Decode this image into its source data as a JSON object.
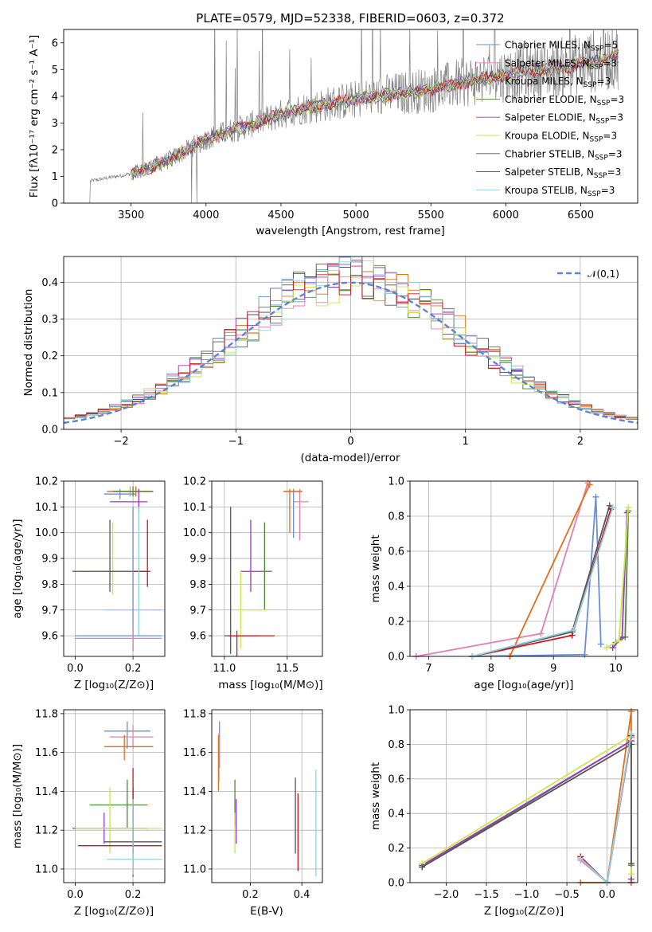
{
  "colors": [
    "#6a8ed8",
    "#e57fb1",
    "#e06f1a",
    "#4f8a3a",
    "#9b38c6",
    "#c8e84b",
    "#555555",
    "#c8161c",
    "#8fd1e0"
  ],
  "chart_data": [
    {
      "type": "line",
      "title": "PLATE=0579, MJD=52338, FIBERID=0603, z=0.372",
      "xlabel": "wavelength [Angstrom, rest frame]",
      "ylabel": "Flux [f$_\\lambda$10$^{-17}$ erg cm$^{-2}$ s$^{-1}$ A$^{-1}$]",
      "ylabel_display": "Flux [fλ10⁻¹⁷ erg cm⁻² s⁻¹ A⁻¹]",
      "xlim": [
        3050,
        6880
      ],
      "ylim": [
        0,
        6.5
      ],
      "xticks": [
        "3500",
        "4000",
        "4500",
        "5000",
        "5500",
        "6000",
        "6500"
      ],
      "yticks": [
        "0",
        "1",
        "2",
        "3",
        "4",
        "5",
        "6"
      ],
      "series": [
        {
          "name": "Chabrier MILES, N$_{SSP}$=5",
          "display": "Chabrier MILES, N",
          "sub": "SSP",
          "suffix": "=5"
        },
        {
          "name": "Salpeter MILES, N$_{SSP}$=3",
          "display": "Salpeter MILES, N",
          "sub": "SSP",
          "suffix": "=3"
        },
        {
          "name": "Kroupa MILES, N$_{SSP}$=3",
          "display": "Kroupa MILES, N",
          "sub": "SSP",
          "suffix": "=3"
        },
        {
          "name": "Chabrier ELODIE, N$_{SSP}$=3",
          "display": "Chabrier ELODIE, N",
          "sub": "SSP",
          "suffix": "=3"
        },
        {
          "name": "Salpeter ELODIE, N$_{SSP}$=3",
          "display": "Salpeter ELODIE, N",
          "sub": "SSP",
          "suffix": "=3"
        },
        {
          "name": "Kroupa ELODIE, N$_{SSP}$=3",
          "display": "Kroupa ELODIE, N",
          "sub": "SSP",
          "suffix": "=3"
        },
        {
          "name": "Chabrier STELIB, N$_{SSP}$=3",
          "display": "Chabrier STELIB, N",
          "sub": "SSP",
          "suffix": "=3"
        },
        {
          "name": "Salpeter STELIB, N$_{SSP}$=3",
          "display": "Salpeter STELIB, N",
          "sub": "SSP",
          "suffix": "=3"
        },
        {
          "name": "Kroupa STELIB, N$_{SSP}$=3",
          "display": "Kroupa STELIB, N",
          "sub": "SSP",
          "suffix": "=3"
        }
      ],
      "data_continuum": {
        "x": [
          3200,
          3500,
          3750,
          4000,
          4300,
          4600,
          4900,
          5200,
          5500,
          5800,
          6100,
          6400,
          6750
        ],
        "y": [
          0.8,
          1.1,
          1.6,
          2.4,
          2.95,
          3.5,
          3.8,
          4.05,
          4.25,
          4.6,
          4.9,
          5.1,
          5.5
        ]
      },
      "grid": false
    },
    {
      "type": "line",
      "xlabel": "(data-model)/error",
      "ylabel": "Normed distribution",
      "xlim": [
        -2.5,
        2.5
      ],
      "ylim": [
        0,
        0.47
      ],
      "xticks": [
        "−2",
        "−1",
        "0",
        "1",
        "2"
      ],
      "yticks": [
        "0.0",
        "0.1",
        "0.2",
        "0.3",
        "0.4"
      ],
      "legend": "$\\mathcal{N}(0,1)$",
      "legend_display": "𝒩(0,1)",
      "legend_position": "top-right",
      "bin_width": 0.1,
      "grid": true
    },
    {
      "type": "scatter",
      "xlabel": "Z [log$_{10}$(Z/Z$_\\odot$)]",
      "xlabel_display": "Z [log₁₀(Z/Z⊙)]",
      "ylabel": "age  [log$_{10}$(age/yr)]",
      "ylabel_display": "age  [log₁₀(age/yr)]",
      "xlim": [
        -0.04,
        0.31
      ],
      "ylim": [
        9.52,
        10.2
      ],
      "xticks": [
        "0.0",
        "0.2"
      ],
      "yticks": [
        "9.6",
        "9.7",
        "9.8",
        "9.9",
        "10.0",
        "10.1",
        "10.2"
      ],
      "points": [
        {
          "x": 0.155,
          "xlo": 0.1,
          "xhi": 0.21,
          "y": 10.15,
          "ylo": 10.13,
          "yhi": 10.17
        },
        {
          "x": 0.19,
          "xlo": 0.12,
          "xhi": 0.26,
          "y": 10.16,
          "ylo": 10.14,
          "yhi": 10.18
        },
        {
          "x": 0.21,
          "xlo": 0.11,
          "xhi": 0.27,
          "y": 10.16,
          "ylo": 10.14,
          "yhi": 10.18
        },
        {
          "x": 0.2,
          "xlo": 0.13,
          "xhi": 0.27,
          "y": 10.16,
          "ylo": 10.14,
          "yhi": 10.18
        },
        {
          "x": 0.22,
          "xlo": 0.12,
          "xhi": 0.25,
          "y": 10.12,
          "ylo": 10.08,
          "yhi": 10.17
        },
        {
          "x": 0.13,
          "xlo": 0.02,
          "xhi": 0.25,
          "y": 9.85,
          "ylo": 9.76,
          "yhi": 10.04
        },
        {
          "x": 0.12,
          "xlo": -0.01,
          "xhi": 0.25,
          "y": 9.85,
          "ylo": 9.77,
          "yhi": 10.05
        },
        {
          "x": 0.25,
          "xlo": 0.2,
          "xhi": 0.26,
          "y": 9.85,
          "ylo": 9.79,
          "yhi": 10.05
        },
        {
          "x": 0.22,
          "xlo": 0.1,
          "xhi": 0.3,
          "y": 9.7,
          "ylo": 9.6,
          "yhi": 10.1
        },
        {
          "x": 0.2,
          "xlo": 0.0,
          "xhi": 0.3,
          "y": 9.6,
          "ylo": 9.54,
          "yhi": 10.1
        },
        {
          "x": 0.2,
          "xlo": 0.0,
          "xhi": 0.3,
          "y": 9.59,
          "ylo": 9.55,
          "yhi": 9.62
        }
      ]
    },
    {
      "type": "scatter",
      "xlabel": "mass [log$_{10}$(M/M$_\\odot$)]",
      "xlabel_display": "mass [log₁₀(M/M⊙)]",
      "xlim": [
        10.9,
        11.78
      ],
      "ylim": [
        9.52,
        10.2
      ],
      "xticks": [
        "11.0",
        "11.5"
      ],
      "yticks": [
        "9.6",
        "9.7",
        "9.8",
        "9.9",
        "10.0",
        "10.1",
        "10.2"
      ],
      "points": [
        {
          "x": 11.55,
          "xlo": 11.48,
          "xhi": 11.62,
          "y": 10.16,
          "ylo": 9.98,
          "yhi": 10.17
        },
        {
          "x": 11.6,
          "xlo": 11.55,
          "xhi": 11.67,
          "y": 10.12,
          "ylo": 9.97,
          "yhi": 10.17
        },
        {
          "x": 11.52,
          "xlo": 11.47,
          "xhi": 11.62,
          "y": 10.16,
          "ylo": 10.0,
          "yhi": 10.17
        },
        {
          "x": 11.32,
          "xlo": 11.3,
          "xhi": 11.38,
          "y": 9.85,
          "ylo": 9.7,
          "yhi": 10.04
        },
        {
          "x": 11.21,
          "xlo": 11.13,
          "xhi": 11.3,
          "y": 9.85,
          "ylo": 9.77,
          "yhi": 10.05
        },
        {
          "x": 11.13,
          "xlo": 11.09,
          "xhi": 11.35,
          "y": 9.7,
          "ylo": 9.55,
          "yhi": 9.85
        },
        {
          "x": 11.05,
          "xlo": 11.0,
          "xhi": 11.28,
          "y": 9.6,
          "ylo": 9.53,
          "yhi": 10.1
        },
        {
          "x": 11.1,
          "xlo": 11.03,
          "xhi": 11.4,
          "y": 9.6,
          "ylo": 9.52,
          "yhi": 9.62
        }
      ]
    },
    {
      "type": "line",
      "xlabel": "age  [log$_{10}$(age/yr)]",
      "xlabel_display": "age  [log₁₀(age/yr)]",
      "ylabel": "mass weight",
      "xlim": [
        6.7,
        10.35
      ],
      "ylim": [
        0,
        1.0
      ],
      "xticks": [
        "7",
        "8",
        "9",
        "10"
      ],
      "yticks": [
        "0.0",
        "0.2",
        "0.4",
        "0.6",
        "0.8",
        "1.0"
      ],
      "grid": true,
      "series": [
        {
          "x": [
            7.7,
            9.5,
            9.68,
            9.76
          ],
          "y": [
            0.0,
            0.01,
            0.91,
            0.07
          ]
        },
        {
          "x": [
            6.8,
            8.8,
            9.55
          ],
          "y": [
            0.0,
            0.13,
            0.99
          ]
        },
        {
          "x": [
            8.3,
            9.58
          ],
          "y": [
            0.0,
            0.98
          ]
        },
        {
          "x": [
            10.0,
            10.15,
            10.2
          ],
          "y": [
            0.08,
            0.11,
            0.83
          ]
        },
        {
          "x": [
            9.95,
            10.1,
            10.18
          ],
          "y": [
            0.05,
            0.11,
            0.82
          ]
        },
        {
          "x": [
            9.85,
            10.05,
            10.2
          ],
          "y": [
            0.05,
            0.09,
            0.85
          ]
        },
        {
          "x": [
            7.7,
            9.3,
            9.9
          ],
          "y": [
            0.0,
            0.14,
            0.86
          ]
        },
        {
          "x": [
            7.7,
            9.3,
            9.92
          ],
          "y": [
            0.0,
            0.12,
            0.84
          ]
        },
        {
          "x": [
            7.7,
            9.32,
            9.95
          ],
          "y": [
            0.0,
            0.15,
            0.85
          ]
        }
      ]
    },
    {
      "type": "scatter",
      "xlabel": "Z [log$_{10}$(Z/Z$_\\odot$)]",
      "xlabel_display": "Z [log₁₀(Z/Z⊙)]",
      "ylabel": "mass [log$_{10}$(M/M$_\\odot$)]",
      "ylabel_display": "mass [log₁₀(M/M⊙)]",
      "xlim": [
        -0.04,
        0.31
      ],
      "ylim": [
        10.93,
        11.82
      ],
      "xticks": [
        "0.0",
        "0.2"
      ],
      "yticks": [
        "11.0",
        "11.2",
        "11.4",
        "11.6",
        "11.8"
      ],
      "points": [
        {
          "x": 0.18,
          "xlo": 0.1,
          "xhi": 0.26,
          "y": 11.71,
          "ylo": 11.62,
          "yhi": 11.76
        },
        {
          "x": 0.2,
          "xlo": 0.12,
          "xhi": 0.27,
          "y": 11.68,
          "ylo": 11.62,
          "yhi": 11.74
        },
        {
          "x": 0.17,
          "xlo": 0.1,
          "xhi": 0.27,
          "y": 11.63,
          "ylo": 11.56,
          "yhi": 11.69
        },
        {
          "x": 0.18,
          "xlo": 0.05,
          "xhi": 0.25,
          "y": 11.33,
          "ylo": 11.21,
          "yhi": 11.46
        },
        {
          "x": 0.1,
          "xlo": -0.01,
          "xhi": 0.25,
          "y": 11.21,
          "ylo": 11.13,
          "yhi": 11.29
        },
        {
          "x": 0.12,
          "xlo": 0.0,
          "xhi": 0.3,
          "y": 11.21,
          "ylo": 11.08,
          "yhi": 11.42
        },
        {
          "x": 0.2,
          "xlo": 0.1,
          "xhi": 0.3,
          "y": 11.14,
          "ylo": 11.08,
          "yhi": 11.42
        },
        {
          "x": 0.2,
          "xlo": 0.01,
          "xhi": 0.3,
          "y": 11.12,
          "ylo": 10.96,
          "yhi": 11.52
        },
        {
          "x": 0.2,
          "xlo": 0.11,
          "xhi": 0.3,
          "y": 11.05,
          "ylo": 10.97,
          "yhi": 11.36
        }
      ]
    },
    {
      "type": "scatter",
      "xlabel": "E(B-V)",
      "xlim": [
        0.05,
        0.48
      ],
      "ylim": [
        10.93,
        11.82
      ],
      "xticks": [
        "0.2",
        "0.4"
      ],
      "yticks": [
        "11.0",
        "11.2",
        "11.4",
        "11.6",
        "11.8"
      ],
      "points": [
        {
          "x": 0.08,
          "ylo": 11.52,
          "yhi": 11.76
        },
        {
          "x": 0.078,
          "ylo": 11.45,
          "yhi": 11.7
        },
        {
          "x": 0.076,
          "ylo": 11.4,
          "yhi": 11.69
        },
        {
          "x": 0.14,
          "ylo": 11.22,
          "yhi": 11.46
        },
        {
          "x": 0.145,
          "ylo": 11.13,
          "yhi": 11.36
        },
        {
          "x": 0.14,
          "ylo": 11.08,
          "yhi": 11.29
        },
        {
          "x": 0.375,
          "ylo": 11.08,
          "yhi": 11.47
        },
        {
          "x": 0.385,
          "ylo": 10.99,
          "yhi": 11.39
        },
        {
          "x": 0.455,
          "ylo": 10.96,
          "yhi": 11.51
        }
      ]
    },
    {
      "type": "line",
      "xlabel": "Z [log$_{10}$(Z/Z$_\\odot$)]",
      "xlabel_display": "Z [log₁₀(Z/Z⊙)]",
      "ylabel": "mass weight",
      "xlim": [
        -2.45,
        0.38
      ],
      "ylim": [
        0,
        1.0
      ],
      "xticks": [
        "−2.0",
        "−1.5",
        "−1.0",
        "−0.5",
        "0.0"
      ],
      "yticks": [
        "0.0",
        "0.2",
        "0.4",
        "0.6",
        "0.8",
        "1.0"
      ],
      "grid": true,
      "series": [
        {
          "x": [
            -0.33,
            0.0,
            0.3,
            0.3
          ],
          "y": [
            0.15,
            0.0,
            0.85,
            0.0
          ]
        },
        {
          "x": [
            -0.33,
            0.0,
            0.3,
            0.3
          ],
          "y": [
            0.13,
            0.0,
            0.84,
            0.0
          ]
        },
        {
          "x": [
            -0.33,
            0.0,
            0.3,
            0.3
          ],
          "y": [
            0.0,
            0.0,
            0.99,
            0.0
          ]
        },
        {
          "x": [
            -2.3,
            0.3,
            0.3
          ],
          "y": [
            0.09,
            0.82,
            0.1
          ]
        },
        {
          "x": [
            -2.3,
            0.3,
            0.3
          ],
          "y": [
            0.1,
            0.82,
            0.02
          ]
        },
        {
          "x": [
            -2.3,
            0.3,
            0.3
          ],
          "y": [
            0.11,
            0.85,
            0.05
          ]
        },
        {
          "x": [
            -2.3,
            0.3,
            0.3
          ],
          "y": [
            0.09,
            0.8,
            0.11
          ]
        },
        {
          "x": [
            -0.33,
            0.0,
            0.3
          ],
          "y": [
            0.15,
            0.0,
            0.85
          ]
        },
        {
          "x": [
            -0.33,
            0.0,
            0.3
          ],
          "y": [
            0.14,
            0.0,
            0.86
          ]
        }
      ]
    }
  ]
}
